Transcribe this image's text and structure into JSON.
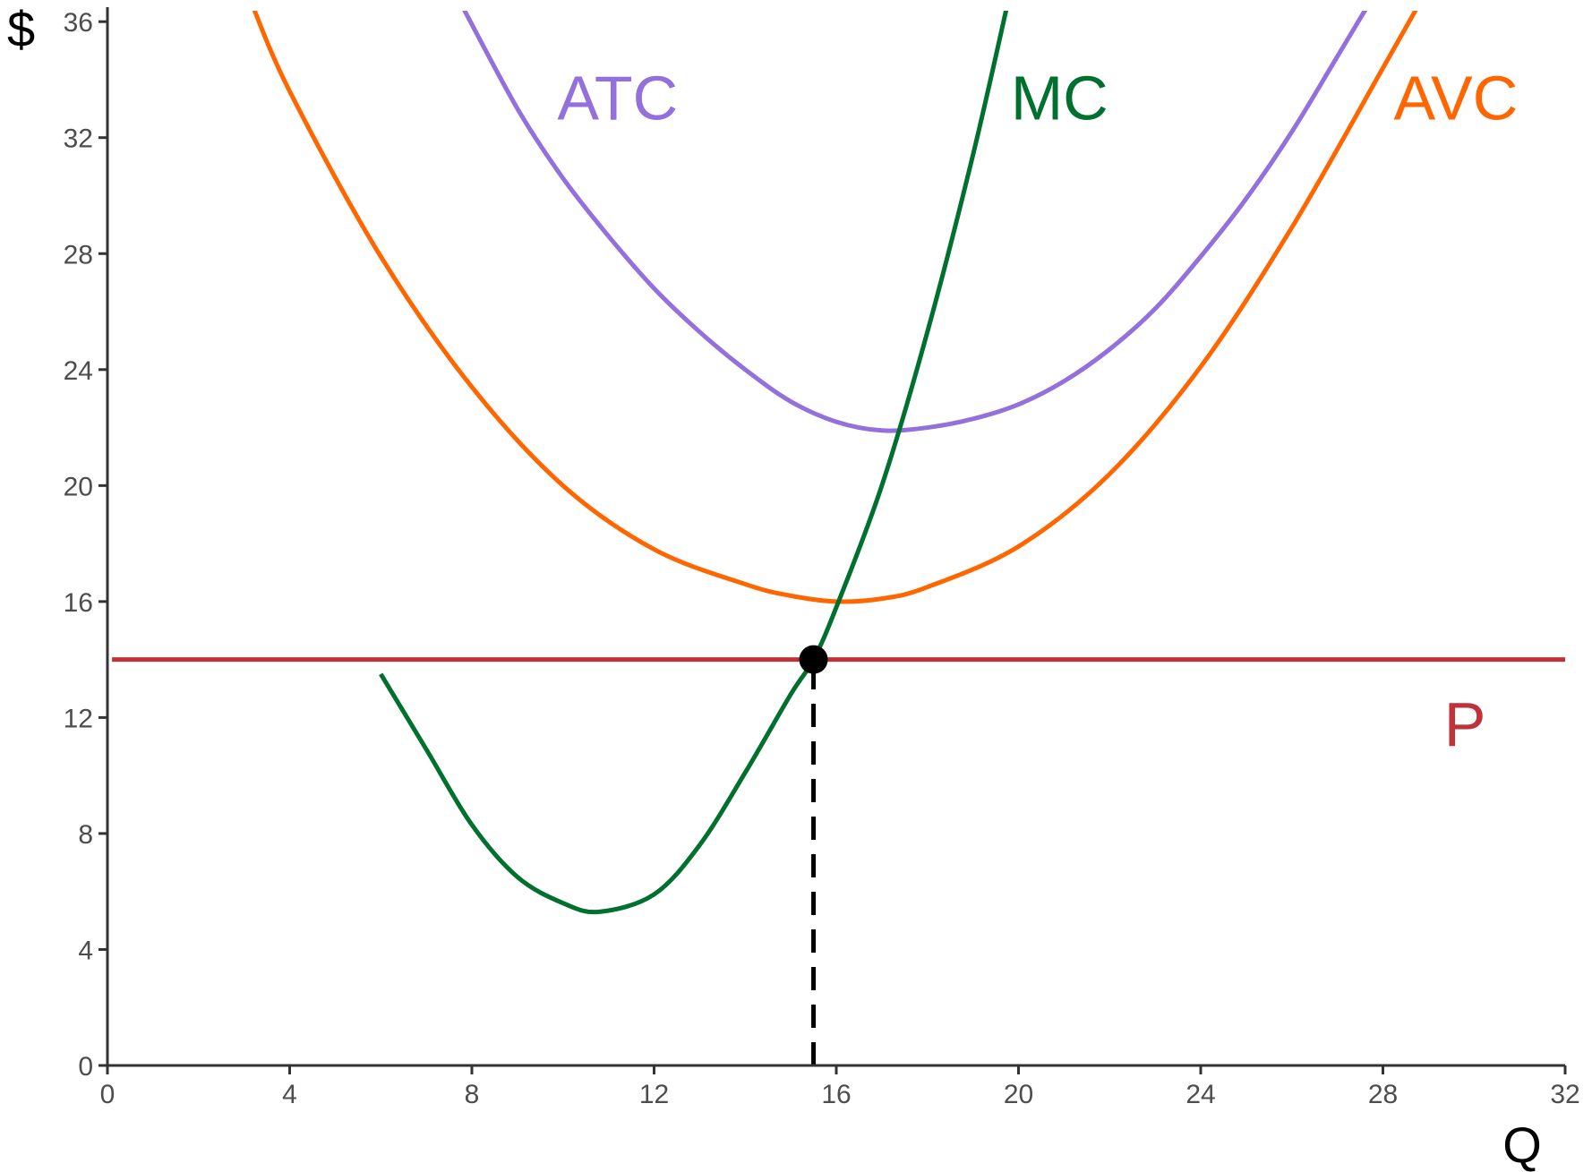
{
  "chart_data": {
    "type": "line",
    "xlabel": "Q",
    "ylabel": "$",
    "xlim": [
      0,
      32
    ],
    "ylim": [
      0,
      36.5
    ],
    "x_ticks": [
      "0",
      "4",
      "8",
      "12",
      "16",
      "20",
      "24",
      "28",
      "32"
    ],
    "y_ticks": [
      "0",
      "4",
      "8",
      "12",
      "16",
      "20",
      "24",
      "28",
      "32",
      "36"
    ],
    "grid": false,
    "legend": "none",
    "series": [
      {
        "name": "ATC",
        "color": "#9370DB",
        "x": [
          7.8,
          9,
          10,
          11,
          12,
          13,
          14,
          15,
          16,
          17,
          18,
          19,
          20,
          21,
          22,
          23,
          24,
          25,
          26,
          27,
          27.8
        ],
        "y": [
          36.5,
          33.0,
          30.6,
          28.6,
          26.8,
          25.3,
          24.0,
          22.9,
          22.2,
          21.9,
          22.0,
          22.3,
          22.8,
          23.6,
          24.7,
          26.1,
          27.9,
          29.9,
          32.2,
          34.8,
          36.9
        ]
      },
      {
        "name": "AVC",
        "color": "#FF6600",
        "x": [
          3.1,
          4,
          6,
          8,
          10,
          12,
          14,
          15,
          16,
          17,
          18,
          20,
          22,
          24,
          26,
          28,
          28.9
        ],
        "y": [
          36.9,
          33.6,
          27.9,
          23.4,
          20.0,
          17.8,
          16.6,
          16.2,
          16.0,
          16.1,
          16.5,
          17.9,
          20.4,
          24.1,
          28.9,
          34.4,
          36.9
        ]
      },
      {
        "name": "MC",
        "color": "#00702E",
        "x": [
          6.0,
          7,
          8,
          9,
          10,
          10.8,
          12,
          13,
          14,
          15,
          15.5,
          16,
          17,
          18,
          19,
          19.8
        ],
        "y": [
          13.5,
          10.9,
          8.3,
          6.5,
          5.6,
          5.3,
          5.9,
          7.6,
          10.1,
          12.8,
          14.0,
          15.8,
          20.0,
          25.3,
          31.4,
          36.9
        ]
      },
      {
        "name": "P",
        "color": "#C0323A",
        "x": [
          0.1,
          32
        ],
        "y": [
          14,
          14
        ]
      }
    ],
    "annotations": [
      {
        "text": "ATC",
        "color": "#9370DB",
        "x": 11.2,
        "y": 33.4
      },
      {
        "text": "MC",
        "color": "#00702E",
        "x": 20.9,
        "y": 33.4
      },
      {
        "text": "AVC",
        "color": "#FF6600",
        "x": 29.6,
        "y": 33.4
      },
      {
        "text": "P",
        "color": "#C0323A",
        "x": 29.8,
        "y": 11.8
      }
    ],
    "point": {
      "x": 15.5,
      "y": 14,
      "color": "#000000"
    },
    "dashed_line": {
      "x": 15.5,
      "from_y": 0,
      "to_y": 14,
      "color": "#000000"
    }
  }
}
